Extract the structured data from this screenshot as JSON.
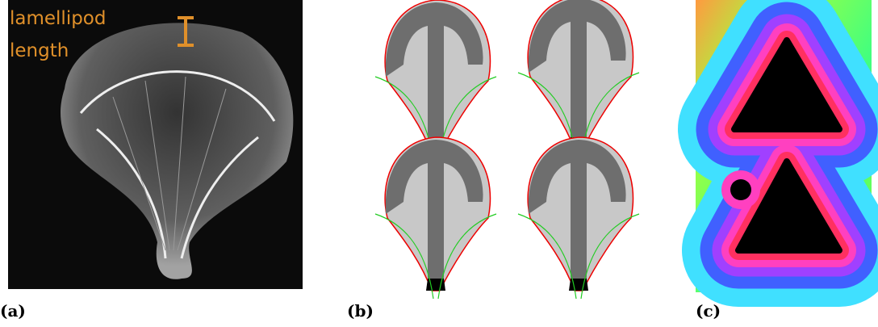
{
  "panels": [
    {
      "label": "(a)",
      "annotation": [
        "lamellipod",
        "length"
      ]
    },
    {
      "label": "(b)"
    },
    {
      "label": "(c)"
    }
  ]
}
